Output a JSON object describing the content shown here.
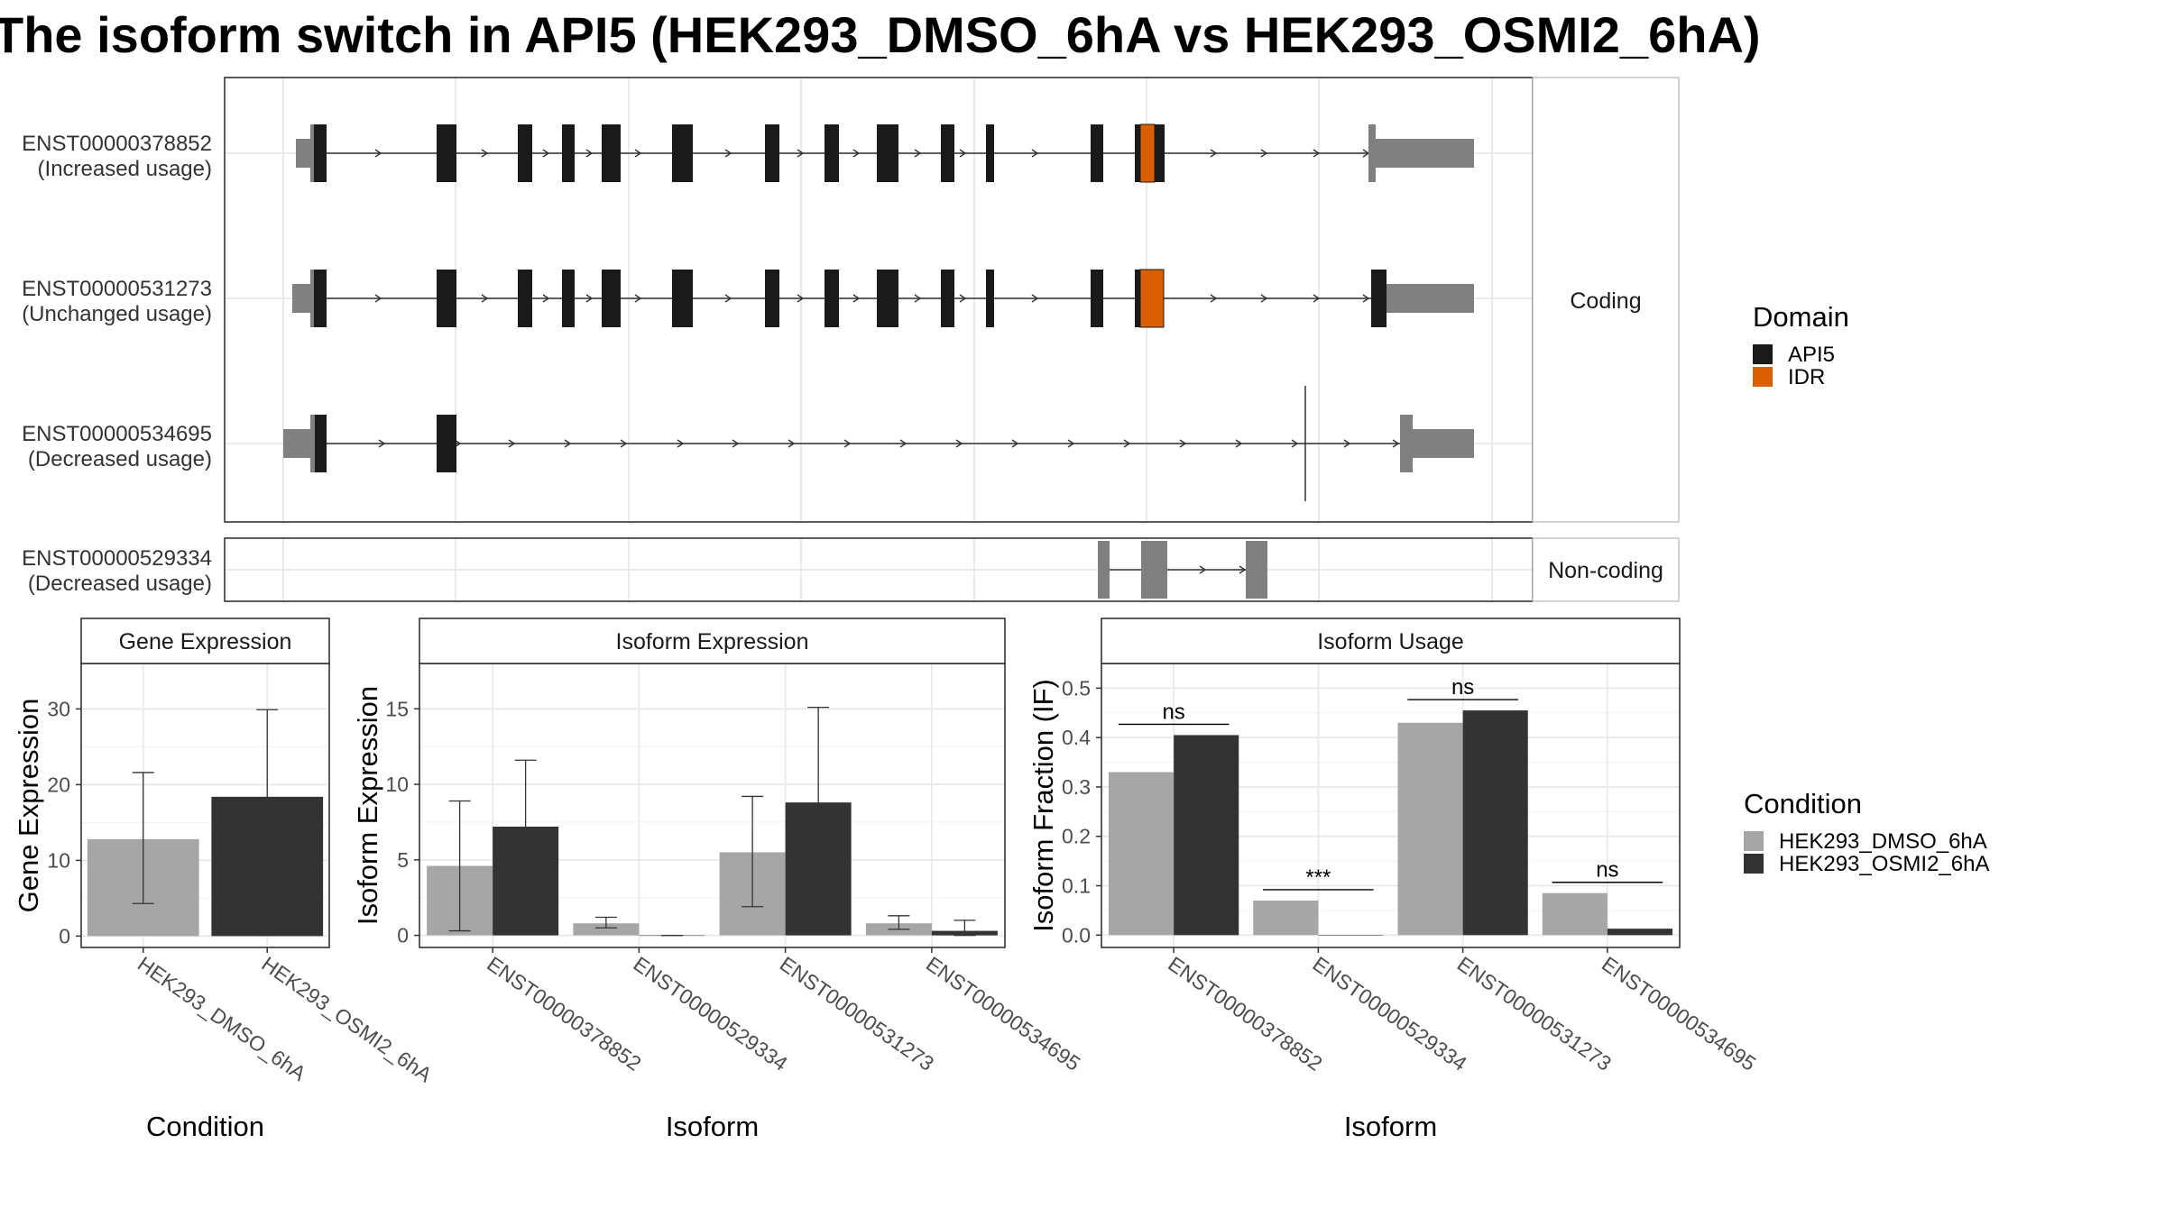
{
  "title": "The isoform switch in API5 (HEK293_DMSO_6hA vs HEK293_OSMI2_6hA)",
  "colors": {
    "utr": "#808080",
    "api5": "#1a1a1a",
    "idr": "#d95f02",
    "dmso": "#a6a6a6",
    "osmi": "#333333",
    "grid": "#ebebeb",
    "border": "#333333",
    "strip_bg": "#ffffff"
  },
  "structure": {
    "coding_strip": "Coding",
    "noncoding_strip": "Non-coding",
    "transcripts": [
      {
        "id": "ENST00000378852",
        "usage": "(Increased usage)",
        "group": "coding"
      },
      {
        "id": "ENST00000531273",
        "usage": "(Unchanged usage)",
        "group": "coding"
      },
      {
        "id": "ENST00000534695",
        "usage": "(Decreased usage)",
        "group": "coding"
      },
      {
        "id": "ENST00000529334",
        "usage": "(Decreased usage)",
        "group": "noncoding"
      }
    ],
    "domain_legend": {
      "title": "Domain",
      "items": [
        {
          "label": "API5",
          "color_key": "api5"
        },
        {
          "label": "IDR",
          "color_key": "idr"
        }
      ]
    }
  },
  "chart_data": [
    {
      "type": "bar",
      "title": "Gene Expression",
      "xlabel": "Condition",
      "ylabel": "Gene Expression",
      "categories": [
        "HEK293_DMSO_6hA",
        "HEK293_OSMI2_6hA"
      ],
      "values": [
        12.8,
        18.4
      ],
      "error_low": [
        4.3,
        7.0
      ],
      "error_high": [
        21.6,
        29.9
      ],
      "ylim": [
        -1.5,
        36
      ],
      "yticks": [
        "0",
        "10",
        "20",
        "30"
      ]
    },
    {
      "type": "bar",
      "title": "Isoform Expression",
      "xlabel": "Isoform",
      "ylabel": "Isoform Expression",
      "categories": [
        "ENST00000378852",
        "ENST00000529334",
        "ENST00000531273",
        "ENST00000534695"
      ],
      "series": [
        {
          "name": "HEK293_DMSO_6hA",
          "values": [
            4.6,
            0.8,
            5.5,
            0.8
          ],
          "error_low": [
            0.3,
            0.5,
            1.9,
            0.4
          ],
          "error_high": [
            8.9,
            1.2,
            9.2,
            1.3
          ]
        },
        {
          "name": "HEK293_OSMI2_6hA",
          "values": [
            7.2,
            0.0,
            8.8,
            0.3
          ],
          "error_low": [
            2.8,
            0.0,
            2.6,
            0.0
          ],
          "error_high": [
            11.6,
            0.0,
            15.1,
            1.0
          ]
        }
      ],
      "ylim": [
        -0.8,
        18
      ],
      "yticks": [
        "0",
        "5",
        "10",
        "15"
      ]
    },
    {
      "type": "bar",
      "title": "Isoform Usage",
      "xlabel": "Isoform",
      "ylabel": "Isoform Fraction (IF)",
      "categories": [
        "ENST00000378852",
        "ENST00000529334",
        "ENST00000531273",
        "ENST00000534695"
      ],
      "series": [
        {
          "name": "HEK293_DMSO_6hA",
          "values": [
            0.33,
            0.07,
            0.43,
            0.085
          ]
        },
        {
          "name": "HEK293_OSMI2_6hA",
          "values": [
            0.405,
            0.0,
            0.455,
            0.013
          ]
        }
      ],
      "significance": [
        "ns",
        "***",
        "ns",
        "ns"
      ],
      "ylim": [
        -0.025,
        0.55
      ],
      "yticks": [
        "0.0",
        "0.1",
        "0.2",
        "0.3",
        "0.4",
        "0.5"
      ],
      "legend": {
        "title": "Condition",
        "placement": "right"
      }
    }
  ]
}
